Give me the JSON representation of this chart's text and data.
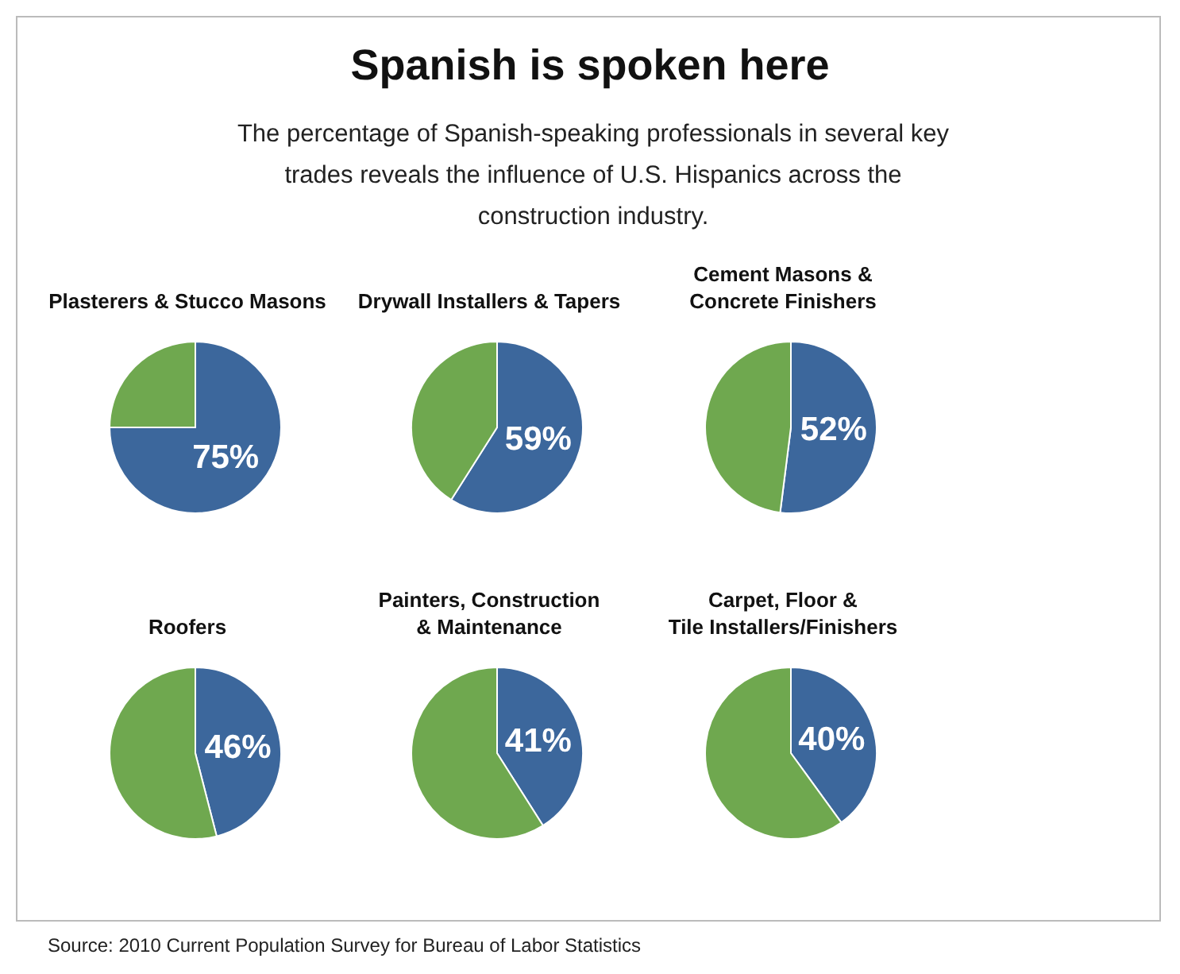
{
  "chart_data": [
    {
      "type": "other",
      "title": "Spanish is spoken here",
      "subtitle": "The percentage of Spanish-speaking professionals in several key trades reveals the influence of U.S. Hispanics across the construction industry.",
      "annotations": [
        "Source: 2010 Current Population Survey for Bureau of Labor Statistics"
      ]
    },
    {
      "type": "pie",
      "title": "Plasterers & Stucco Masons",
      "categories": [
        null,
        null
      ],
      "values": [
        75,
        25
      ],
      "colors": [
        "#3c679c",
        "#6fa84f"
      ],
      "value_labels": [
        "75%",
        null
      ]
    },
    {
      "type": "pie",
      "title": "Drywall Installers & Tapers",
      "categories": [
        null,
        null
      ],
      "values": [
        59,
        41
      ],
      "colors": [
        "#3c679c",
        "#6fa84f"
      ],
      "value_labels": [
        "59%",
        null
      ]
    },
    {
      "type": "pie",
      "title": "Cement Masons &\nConcrete Finishers",
      "categories": [
        null,
        null
      ],
      "values": [
        52,
        48
      ],
      "colors": [
        "#3c679c",
        "#6fa84f"
      ],
      "value_labels": [
        "52%",
        null
      ]
    },
    {
      "type": "pie",
      "title": "Roofers",
      "categories": [
        null,
        null
      ],
      "values": [
        46,
        54
      ],
      "colors": [
        "#3c679c",
        "#6fa84f"
      ],
      "value_labels": [
        "46%",
        null
      ]
    },
    {
      "type": "pie",
      "title": "Painters, Construction\n& Maintenance",
      "categories": [
        null,
        null
      ],
      "values": [
        41,
        59
      ],
      "colors": [
        "#3c679c",
        "#6fa84f"
      ],
      "value_labels": [
        "41%",
        null
      ]
    },
    {
      "type": "pie",
      "title": "Carpet, Floor &\nTile Installers/Finishers",
      "categories": [
        null,
        null
      ],
      "values": [
        40,
        60
      ],
      "colors": [
        "#3c679c",
        "#6fa84f"
      ],
      "value_labels": [
        "40%",
        null
      ]
    }
  ]
}
